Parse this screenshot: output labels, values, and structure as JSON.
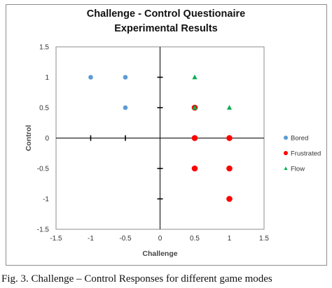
{
  "chart_data": {
    "type": "scatter",
    "title": "Challenge - Control  Questionaire",
    "subtitle": "Experimental Results",
    "xlabel": "Challenge",
    "ylabel": "Control",
    "xlim": [
      -1.5,
      1.5
    ],
    "ylim": [
      -1.5,
      1.5
    ],
    "x_ticks": [
      -1.5,
      -1,
      -0.5,
      0,
      0.5,
      1,
      1.5
    ],
    "y_ticks": [
      -1.5,
      -1,
      -0.5,
      0,
      0.5,
      1,
      1.5
    ],
    "x_tick_labels": [
      "-1.5",
      "-1",
      "-0.5",
      "0",
      "0.5",
      "1",
      "1.5"
    ],
    "y_tick_labels": [
      "-1.5",
      "-1",
      "-0.5",
      "0",
      "0.5",
      "1",
      "1.5"
    ],
    "grid": false,
    "legend_position": "right",
    "series": [
      {
        "name": "Bored",
        "marker": "circle",
        "color": "#5b9bd5",
        "points": [
          [
            -1,
            1
          ],
          [
            -0.5,
            1
          ],
          [
            -0.5,
            0.5
          ]
        ]
      },
      {
        "name": "Frustrated",
        "marker": "circle",
        "color": "#ff0000",
        "points": [
          [
            0.5,
            0.5
          ],
          [
            0.5,
            0
          ],
          [
            1,
            0
          ],
          [
            0.5,
            -0.5
          ],
          [
            1,
            -0.5
          ],
          [
            1,
            -1
          ]
        ]
      },
      {
        "name": "Flow",
        "marker": "triangle",
        "color": "#00b050",
        "points": [
          [
            0.5,
            1
          ],
          [
            0.5,
            0.5
          ],
          [
            1,
            0.5
          ]
        ]
      }
    ]
  },
  "caption": "Fig. 3.  Challenge – Control Responses for different game modes"
}
